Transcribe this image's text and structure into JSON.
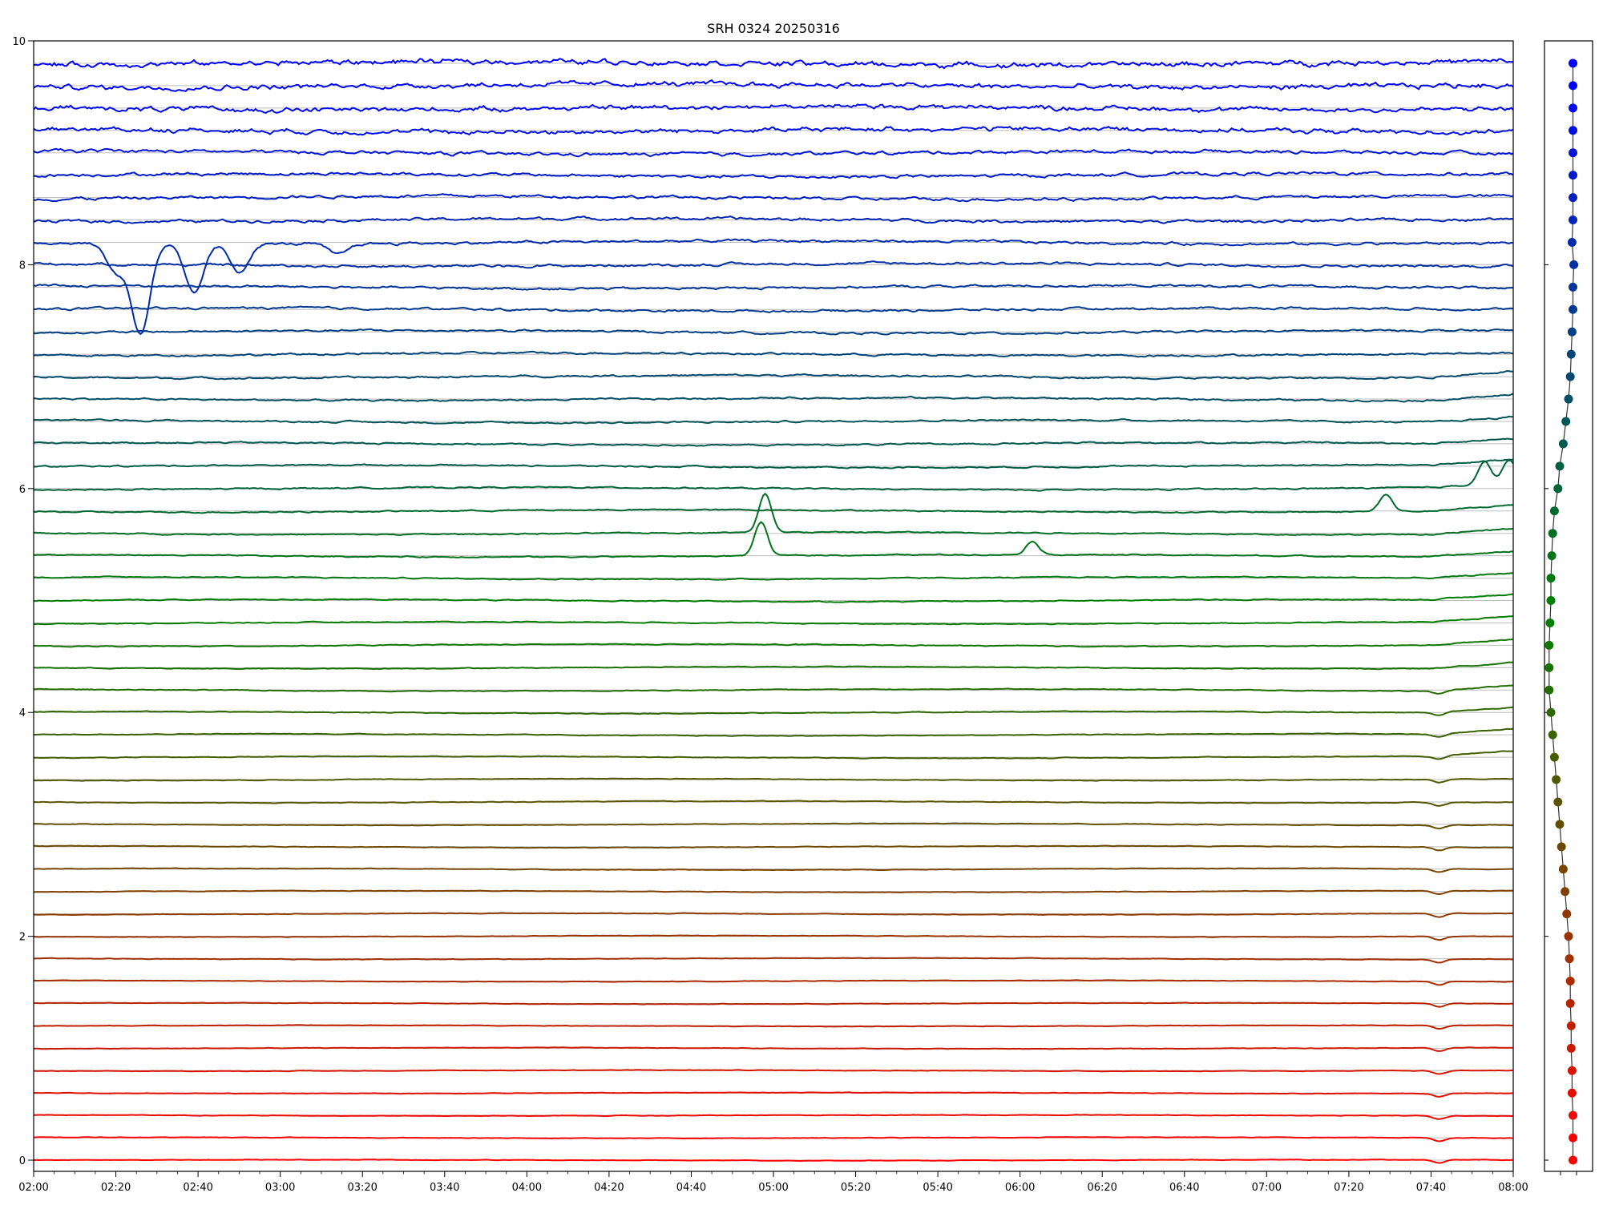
{
  "chart_data": {
    "type": "line",
    "title": "SRH 0324 20250316",
    "xlabel": "",
    "ylabel": "",
    "x_range": [
      "02:00",
      "08:00"
    ],
    "x_ticks": [
      "02:00",
      "02:20",
      "02:40",
      "03:00",
      "03:20",
      "03:40",
      "04:00",
      "04:20",
      "04:40",
      "05:00",
      "05:20",
      "05:40",
      "06:00",
      "06:20",
      "06:40",
      "07:00",
      "07:20",
      "07:40",
      "08:00"
    ],
    "y_range": [
      -0.1,
      10
    ],
    "y_ticks": [
      "0",
      "2",
      "4",
      "6",
      "8",
      "10"
    ],
    "grid": "horizontal reference line at each trace baseline",
    "legend": "none",
    "n_traces": 50,
    "trace_spacing": 0.2,
    "color_start": "#ff0000",
    "color_mid": "#008000",
    "color_end": "#0000ff",
    "features": [
      {
        "trace": 41,
        "kind": "dip",
        "t": "02:20",
        "amp": -0.25
      },
      {
        "trace": 41,
        "kind": "dip",
        "t": "02:26",
        "amp": -0.8
      },
      {
        "trace": 41,
        "kind": "dip",
        "t": "02:39",
        "amp": -0.45
      },
      {
        "trace": 41,
        "kind": "dip",
        "t": "02:50",
        "amp": -0.25
      },
      {
        "trace": 41,
        "kind": "dip",
        "t": "03:14",
        "amp": -0.1
      },
      {
        "trace": 28,
        "kind": "bump",
        "t": "04:58",
        "amp": 0.35
      },
      {
        "trace": 27,
        "kind": "bump",
        "t": "04:57",
        "amp": 0.3
      },
      {
        "trace": 27,
        "kind": "bump",
        "t": "06:03",
        "amp": 0.12
      },
      {
        "trace": 29,
        "kind": "bump",
        "t": "07:29",
        "amp": 0.15
      },
      {
        "trace": 30,
        "kind": "bump",
        "t": "07:53",
        "amp": 0.2
      },
      {
        "trace": 30,
        "kind": "bump",
        "t": "07:59",
        "amp": 0.2
      }
    ],
    "side_panel": {
      "type": "scatter-line",
      "x_offsets": [
        0.05,
        0.05,
        0.05,
        0.04,
        0.04,
        0.03,
        0.03,
        0.02,
        0.02,
        0.01,
        0.0,
        -0.02,
        -0.04,
        -0.06,
        -0.08,
        -0.1,
        -0.12,
        -0.14,
        -0.16,
        -0.18,
        -0.2,
        -0.22,
        -0.22,
        -0.22,
        -0.21,
        -0.2,
        -0.2,
        -0.19,
        -0.18,
        -0.16,
        -0.12,
        -0.1,
        -0.06,
        -0.03,
        0.0,
        0.02,
        0.03,
        0.04,
        0.05,
        0.05,
        0.06,
        0.04,
        0.05,
        0.05,
        0.05,
        0.05,
        0.05,
        0.05,
        0.05,
        0.05
      ]
    }
  }
}
